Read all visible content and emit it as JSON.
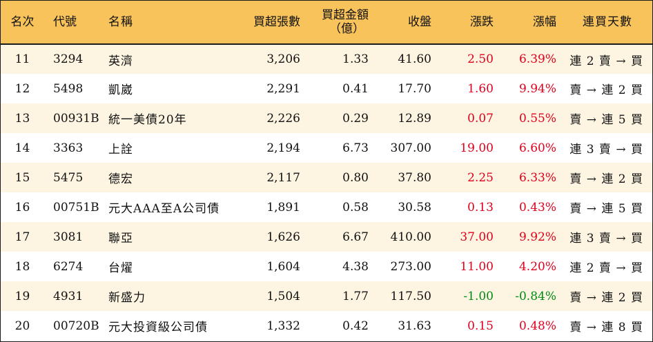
{
  "colors": {
    "header_bg": "#f8c35a",
    "odd_row_bg": "#fdf5e2",
    "even_row_bg": "#ffffff",
    "up": "#e0001b",
    "down": "#008a14"
  },
  "headers": {
    "rank": "名次",
    "code": "代號",
    "name": "名稱",
    "net_buy_lots": "買超張數",
    "net_buy_amount_line1": "買超金額",
    "net_buy_amount_line2": "（億）",
    "close": "收盤",
    "change": "漲跌",
    "change_pct": "漲幅",
    "streak": "連買天數"
  },
  "rows": [
    {
      "rank": "11",
      "code": "3294",
      "name": "英濟",
      "net_buy_lots": "3,206",
      "net_buy_amount": "1.33",
      "close": "41.60",
      "change": "2.50",
      "change_pct": "6.39%",
      "direction": "up",
      "streak": "連 2 賣 → 買"
    },
    {
      "rank": "12",
      "code": "5498",
      "name": "凱崴",
      "net_buy_lots": "2,291",
      "net_buy_amount": "0.41",
      "close": "17.70",
      "change": "1.60",
      "change_pct": "9.94%",
      "direction": "up",
      "streak": "賣 → 連 2 買"
    },
    {
      "rank": "13",
      "code": "00931B",
      "name": "統一美債20年",
      "net_buy_lots": "2,226",
      "net_buy_amount": "0.29",
      "close": "12.89",
      "change": "0.07",
      "change_pct": "0.55%",
      "direction": "up",
      "streak": "賣 → 連 5 買"
    },
    {
      "rank": "14",
      "code": "3363",
      "name": "上詮",
      "net_buy_lots": "2,194",
      "net_buy_amount": "6.73",
      "close": "307.00",
      "change": "19.00",
      "change_pct": "6.60%",
      "direction": "up",
      "streak": "連 3 賣 → 買"
    },
    {
      "rank": "15",
      "code": "5475",
      "name": "德宏",
      "net_buy_lots": "2,117",
      "net_buy_amount": "0.80",
      "close": "37.80",
      "change": "2.25",
      "change_pct": "6.33%",
      "direction": "up",
      "streak": "賣 → 連 2 買"
    },
    {
      "rank": "16",
      "code": "00751B",
      "name": "元大AAA至A公司債",
      "net_buy_lots": "1,891",
      "net_buy_amount": "0.58",
      "close": "30.58",
      "change": "0.13",
      "change_pct": "0.43%",
      "direction": "up",
      "streak": "賣 → 連 5 買"
    },
    {
      "rank": "17",
      "code": "3081",
      "name": "聯亞",
      "net_buy_lots": "1,626",
      "net_buy_amount": "6.67",
      "close": "410.00",
      "change": "37.00",
      "change_pct": "9.92%",
      "direction": "up",
      "streak": "連 3 賣 → 買"
    },
    {
      "rank": "18",
      "code": "6274",
      "name": "台燿",
      "net_buy_lots": "1,604",
      "net_buy_amount": "4.38",
      "close": "273.00",
      "change": "11.00",
      "change_pct": "4.20%",
      "direction": "up",
      "streak": "連 2 賣 → 買"
    },
    {
      "rank": "19",
      "code": "4931",
      "name": "新盛力",
      "net_buy_lots": "1,504",
      "net_buy_amount": "1.77",
      "close": "117.50",
      "change": "-1.00",
      "change_pct": "-0.84%",
      "direction": "down",
      "streak": "賣 → 連 2 買"
    },
    {
      "rank": "20",
      "code": "00720B",
      "name": "元大投資級公司債",
      "net_buy_lots": "1,332",
      "net_buy_amount": "0.42",
      "close": "31.63",
      "change": "0.15",
      "change_pct": "0.48%",
      "direction": "up",
      "streak": "賣 → 連 8 買"
    }
  ]
}
